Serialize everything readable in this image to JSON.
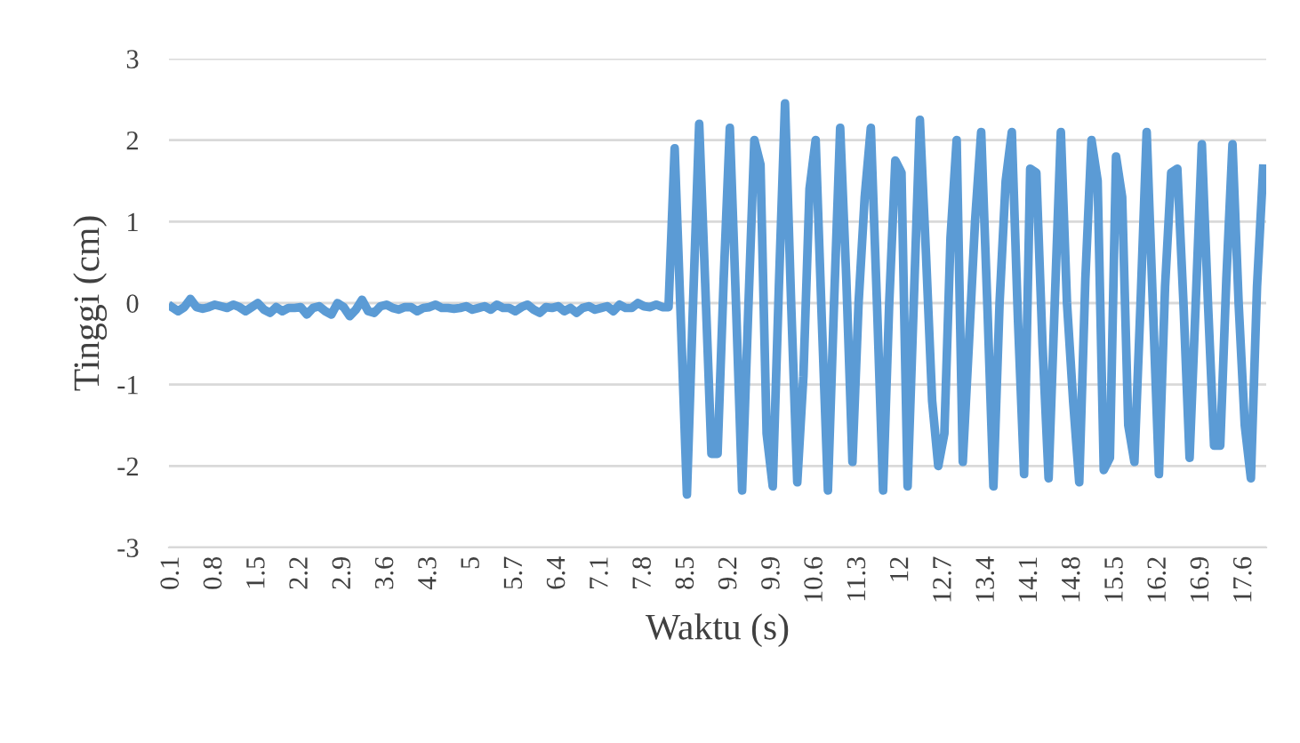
{
  "chart_data": {
    "type": "line",
    "xlabel": "Waktu (s)",
    "ylabel": "Tinggi (cm)",
    "categories": [
      "0.1",
      null,
      null,
      null,
      null,
      null,
      null,
      "0.8",
      null,
      null,
      null,
      null,
      null,
      null,
      "1.5",
      null,
      null,
      null,
      null,
      null,
      null,
      "2.2",
      null,
      null,
      null,
      null,
      null,
      null,
      "2.9",
      null,
      null,
      null,
      null,
      null,
      null,
      "3.6",
      null,
      null,
      null,
      null,
      null,
      null,
      "4.3",
      null,
      null,
      null,
      null,
      null,
      null,
      "5",
      null,
      null,
      null,
      null,
      null,
      null,
      "5.7",
      null,
      null,
      null,
      null,
      null,
      null,
      "6.4",
      null,
      null,
      null,
      null,
      null,
      null,
      "7.1",
      null,
      null,
      null,
      null,
      null,
      null,
      "7.8",
      null,
      null,
      null,
      null,
      null,
      null,
      "8.5",
      null,
      null,
      null,
      null,
      null,
      null,
      "9.2",
      null,
      null,
      null,
      null,
      null,
      null,
      "9.9",
      null,
      null,
      null,
      null,
      null,
      null,
      "10.6",
      null,
      null,
      null,
      null,
      null,
      null,
      "11.3",
      null,
      null,
      null,
      null,
      null,
      null,
      "12",
      null,
      null,
      null,
      null,
      null,
      null,
      "12.7",
      null,
      null,
      null,
      null,
      null,
      null,
      "13.4",
      null,
      null,
      null,
      null,
      null,
      null,
      "14.1",
      null,
      null,
      null,
      null,
      null,
      null,
      "14.8",
      null,
      null,
      null,
      null,
      null,
      null,
      "15.5",
      null,
      null,
      null,
      null,
      null,
      null,
      "16.2",
      null,
      null,
      null,
      null,
      null,
      null,
      "16.9",
      null,
      null,
      null,
      null,
      null,
      null,
      "17.6",
      null,
      null,
      null
    ],
    "series": [
      {
        "color": "#5b9bd5",
        "values": [
          -0.05,
          -0.1,
          -0.05,
          0.05,
          -0.05,
          -0.07,
          -0.05,
          -0.02,
          -0.04,
          -0.06,
          -0.02,
          -0.05,
          -0.1,
          -0.05,
          0.0,
          -0.08,
          -0.12,
          -0.05,
          -0.1,
          -0.06,
          -0.06,
          -0.05,
          -0.14,
          -0.06,
          -0.04,
          -0.1,
          -0.14,
          0.0,
          -0.05,
          -0.16,
          -0.08,
          0.04,
          -0.1,
          -0.12,
          -0.04,
          -0.02,
          -0.06,
          -0.08,
          -0.05,
          -0.05,
          -0.1,
          -0.06,
          -0.05,
          -0.02,
          -0.06,
          -0.06,
          -0.07,
          -0.06,
          -0.04,
          -0.08,
          -0.06,
          -0.04,
          -0.08,
          -0.02,
          -0.06,
          -0.06,
          -0.1,
          -0.05,
          -0.02,
          -0.08,
          -0.12,
          -0.05,
          -0.06,
          -0.04,
          -0.1,
          -0.06,
          -0.12,
          -0.06,
          -0.04,
          -0.08,
          -0.06,
          -0.04,
          -0.1,
          -0.02,
          -0.06,
          -0.06,
          0.0,
          -0.04,
          -0.05,
          -0.02,
          -0.05,
          -0.05,
          1.9,
          -0.2,
          -2.35,
          0.0,
          2.2,
          0.2,
          -1.85,
          -1.85,
          0.3,
          2.15,
          0.0,
          -2.3,
          -0.1,
          2.0,
          1.7,
          -1.6,
          -2.25,
          0.2,
          2.45,
          0.0,
          -2.2,
          -0.9,
          1.4,
          2.0,
          -0.2,
          -2.3,
          0.0,
          2.15,
          0.3,
          -1.95,
          0.0,
          1.3,
          2.15,
          0.0,
          -2.3,
          0.0,
          1.75,
          1.6,
          -2.25,
          0.0,
          2.25,
          0.6,
          -1.2,
          -2.0,
          -1.6,
          0.8,
          2.0,
          -1.95,
          -0.5,
          1.0,
          2.1,
          0.0,
          -2.25,
          0.0,
          1.5,
          2.1,
          -0.2,
          -2.1,
          1.65,
          1.6,
          -0.5,
          -2.15,
          0.0,
          2.1,
          0.0,
          -1.2,
          -2.2,
          0.3,
          2.0,
          1.5,
          -2.05,
          -1.9,
          1.8,
          1.3,
          -1.5,
          -1.95,
          0.0,
          2.1,
          0.0,
          -2.1,
          0.2,
          1.6,
          1.65,
          0.0,
          -1.9,
          0.0,
          1.95,
          0.0,
          -1.75,
          -1.75,
          0.3,
          1.95,
          0.0,
          -1.5,
          -2.15,
          0.2,
          1.65
        ]
      }
    ],
    "ylim": [
      -3,
      3
    ],
    "yticks": [
      -3,
      -2,
      -1,
      0,
      1,
      2,
      3
    ],
    "grid": "y",
    "legend": false
  }
}
